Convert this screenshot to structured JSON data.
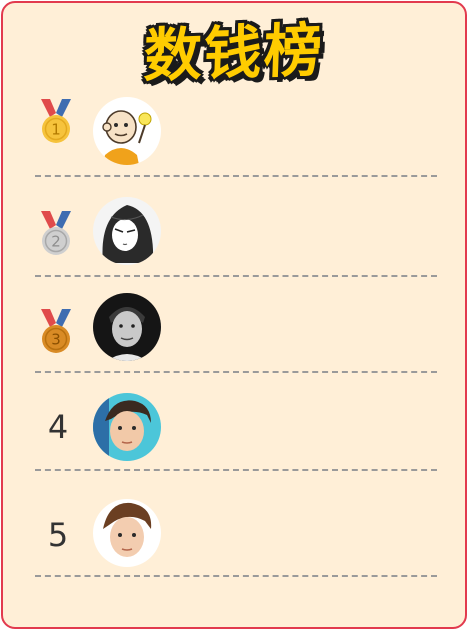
{
  "title": "数钱榜",
  "colors": {
    "background": "#ffefd7",
    "border": "#e23a4e",
    "title_fill": "#ffcc00",
    "title_outline": "#1b1b1b",
    "gold": "#f6c33c",
    "silver": "#c9c9c9",
    "bronze": "#d98b25"
  },
  "ranking": [
    {
      "rank": "1",
      "badge": "gold-medal-icon",
      "avatar": "cartoon-bald-boy-avatar"
    },
    {
      "rank": "2",
      "badge": "silver-medal-icon",
      "avatar": "manga-girl-avatar"
    },
    {
      "rank": "3",
      "badge": "bronze-medal-icon",
      "avatar": "man-portrait-bw-avatar"
    },
    {
      "rank": "4",
      "badge": "number",
      "avatar": "young-man-portrait-avatar"
    },
    {
      "rank": "5",
      "badge": "number",
      "avatar": "young-man-portrait-avatar"
    }
  ]
}
